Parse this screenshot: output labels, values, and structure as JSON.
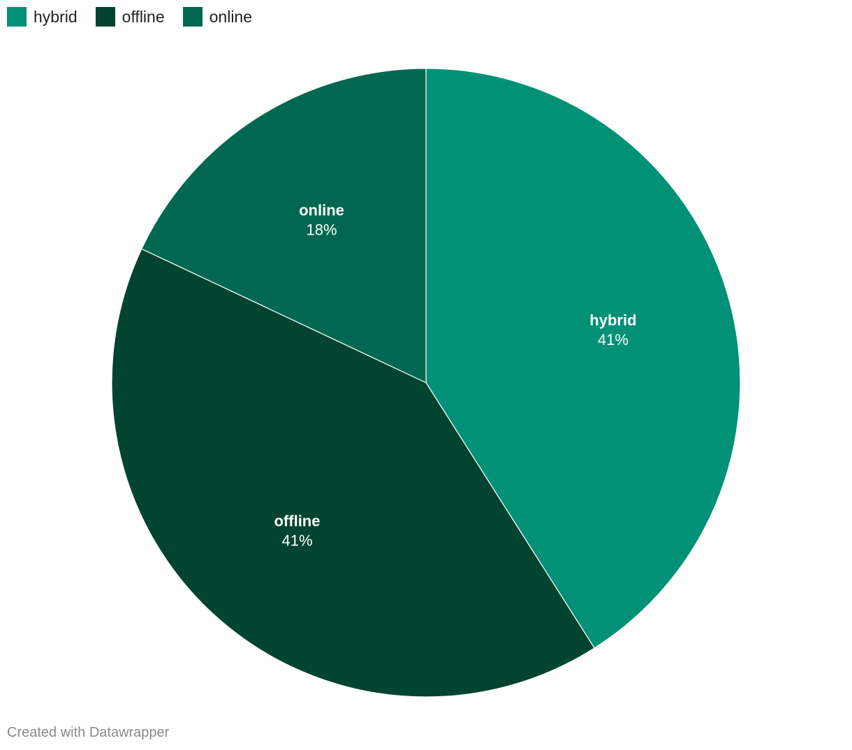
{
  "chart_data": {
    "type": "pie",
    "categories": [
      "hybrid",
      "offline",
      "online"
    ],
    "values": [
      41,
      41,
      18
    ],
    "value_labels": [
      "41%",
      "41%",
      "18%"
    ],
    "colors": [
      "#009177",
      "#024430",
      "#006850"
    ],
    "legend_placement": "top-left"
  },
  "legend": [
    {
      "label": "hybrid",
      "color": "#009177"
    },
    {
      "label": "offline",
      "color": "#024430"
    },
    {
      "label": "online",
      "color": "#006850"
    }
  ],
  "footer": {
    "credit": "Created with Datawrapper"
  }
}
